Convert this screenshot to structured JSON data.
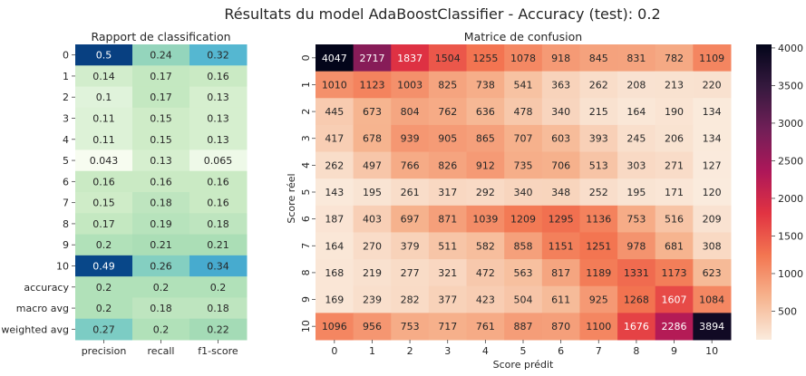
{
  "suptitle": "Résultats du model AdaBoostClassifier - Accuracy (test): 0.2",
  "chart_data": [
    {
      "type": "heatmap",
      "title": "Rapport de classification",
      "colormap": "GnBu",
      "xlabel": "",
      "ylabel": "",
      "columns": [
        "precision",
        "recall",
        "f1-score"
      ],
      "rows": [
        "0",
        "1",
        "2",
        "3",
        "4",
        "5",
        "6",
        "7",
        "8",
        "9",
        "10",
        "accuracy",
        "macro avg",
        "weighted avg"
      ],
      "values": [
        [
          0.5,
          0.24,
          0.32
        ],
        [
          0.14,
          0.17,
          0.16
        ],
        [
          0.1,
          0.17,
          0.13
        ],
        [
          0.11,
          0.15,
          0.13
        ],
        [
          0.11,
          0.15,
          0.13
        ],
        [
          0.043,
          0.13,
          0.065
        ],
        [
          0.16,
          0.16,
          0.16
        ],
        [
          0.15,
          0.18,
          0.16
        ],
        [
          0.17,
          0.19,
          0.18
        ],
        [
          0.2,
          0.21,
          0.21
        ],
        [
          0.49,
          0.26,
          0.34
        ],
        [
          0.2,
          0.2,
          0.2
        ],
        [
          0.2,
          0.18,
          0.18
        ],
        [
          0.27,
          0.2,
          0.22
        ]
      ],
      "labels": [
        [
          "0.5",
          "0.24",
          "0.32"
        ],
        [
          "0.14",
          "0.17",
          "0.16"
        ],
        [
          "0.1",
          "0.17",
          "0.13"
        ],
        [
          "0.11",
          "0.15",
          "0.13"
        ],
        [
          "0.11",
          "0.15",
          "0.13"
        ],
        [
          "0.043",
          "0.13",
          "0.065"
        ],
        [
          "0.16",
          "0.16",
          "0.16"
        ],
        [
          "0.15",
          "0.18",
          "0.16"
        ],
        [
          "0.17",
          "0.19",
          "0.18"
        ],
        [
          "0.2",
          "0.21",
          "0.21"
        ],
        [
          "0.49",
          "0.26",
          "0.34"
        ],
        [
          "0.2",
          "0.2",
          "0.2"
        ],
        [
          "0.2",
          "0.18",
          "0.18"
        ],
        [
          "0.27",
          "0.2",
          "0.22"
        ]
      ],
      "vmin": 0.043,
      "vmax": 0.5,
      "colorbar": false
    },
    {
      "type": "heatmap",
      "title": "Matrice de confusion",
      "colormap": "rocket_r",
      "xlabel": "Score prédit",
      "ylabel": "Score réel",
      "columns": [
        "0",
        "1",
        "2",
        "3",
        "4",
        "5",
        "6",
        "7",
        "8",
        "9",
        "10"
      ],
      "rows": [
        "0",
        "1",
        "2",
        "3",
        "4",
        "5",
        "6",
        "7",
        "8",
        "9",
        "10"
      ],
      "values": [
        [
          4047,
          2717,
          1837,
          1504,
          1255,
          1078,
          918,
          845,
          831,
          782,
          1109
        ],
        [
          1010,
          1123,
          1003,
          825,
          738,
          541,
          363,
          262,
          208,
          213,
          220
        ],
        [
          445,
          673,
          804,
          762,
          636,
          478,
          340,
          215,
          164,
          190,
          134
        ],
        [
          417,
          678,
          939,
          905,
          865,
          707,
          603,
          393,
          245,
          206,
          134
        ],
        [
          262,
          497,
          766,
          826,
          912,
          735,
          706,
          513,
          303,
          271,
          127
        ],
        [
          143,
          195,
          261,
          317,
          292,
          340,
          348,
          252,
          195,
          171,
          120
        ],
        [
          187,
          403,
          697,
          871,
          1039,
          1209,
          1295,
          1136,
          753,
          516,
          209
        ],
        [
          164,
          270,
          379,
          511,
          582,
          858,
          1151,
          1251,
          978,
          681,
          308
        ],
        [
          168,
          219,
          277,
          321,
          472,
          563,
          817,
          1189,
          1331,
          1173,
          623
        ],
        [
          169,
          239,
          282,
          377,
          423,
          504,
          611,
          925,
          1268,
          1607,
          1084
        ],
        [
          1096,
          956,
          753,
          717,
          761,
          887,
          870,
          1100,
          1676,
          2286,
          3894
        ]
      ],
      "vmin": 120,
      "vmax": 4047,
      "colorbar": true,
      "colorbar_ticks": [
        500,
        1000,
        1500,
        2000,
        2500,
        3000,
        3500,
        4000
      ]
    }
  ]
}
